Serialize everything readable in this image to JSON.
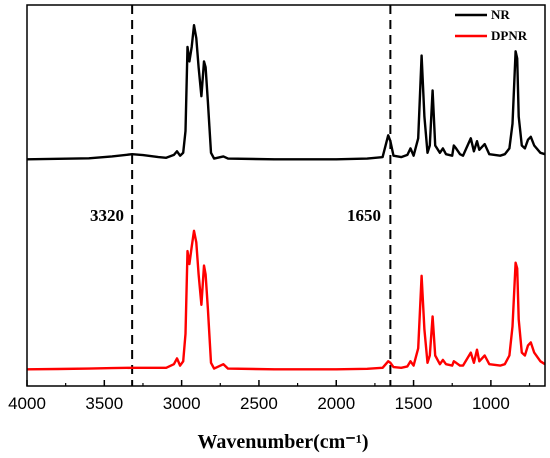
{
  "chart_data": {
    "type": "line",
    "title": "",
    "xlabel": "Wavenumber(cm⁻¹)",
    "ylabel": "",
    "xlim": [
      4000,
      650
    ],
    "x_reversed": true,
    "xticks": [
      4000,
      3500,
      3000,
      2500,
      2000,
      1500,
      1000
    ],
    "y_axis_shown": false,
    "grid": false,
    "legend_position": "top-right",
    "annotations": [
      {
        "label": "3320",
        "x": 3320,
        "style": "dashed vertical line"
      },
      {
        "label": "1650",
        "x": 1650,
        "style": "dashed vertical line"
      }
    ],
    "series": [
      {
        "name": "NR",
        "color": "#000000",
        "baseline": 0,
        "points": [
          [
            4000,
            0.5
          ],
          [
            3800,
            0.8
          ],
          [
            3600,
            1.2
          ],
          [
            3450,
            2.5
          ],
          [
            3320,
            4.0
          ],
          [
            3250,
            3.4
          ],
          [
            3150,
            2.0
          ],
          [
            3100,
            1.5
          ],
          [
            3050,
            3.5
          ],
          [
            3030,
            6.0
          ],
          [
            3010,
            3.0
          ],
          [
            2990,
            5.0
          ],
          [
            2975,
            20.0
          ],
          [
            2962,
            78.0
          ],
          [
            2950,
            68.0
          ],
          [
            2935,
            78.0
          ],
          [
            2920,
            93.0
          ],
          [
            2905,
            84.0
          ],
          [
            2890,
            64.0
          ],
          [
            2872,
            44.0
          ],
          [
            2855,
            68.0
          ],
          [
            2845,
            64.0
          ],
          [
            2830,
            40.0
          ],
          [
            2810,
            5.0
          ],
          [
            2790,
            1.0
          ],
          [
            2730,
            2.5
          ],
          [
            2700,
            1.0
          ],
          [
            2400,
            0.5
          ],
          [
            2000,
            0.5
          ],
          [
            1800,
            1.0
          ],
          [
            1700,
            2.0
          ],
          [
            1664,
            17.0
          ],
          [
            1650,
            13.0
          ],
          [
            1630,
            3.0
          ],
          [
            1580,
            2.0
          ],
          [
            1540,
            3.5
          ],
          [
            1520,
            8.0
          ],
          [
            1500,
            3.0
          ],
          [
            1470,
            15.0
          ],
          [
            1448,
            72.0
          ],
          [
            1430,
            30.0
          ],
          [
            1410,
            5.0
          ],
          [
            1395,
            10.0
          ],
          [
            1377,
            48.0
          ],
          [
            1360,
            10.0
          ],
          [
            1330,
            5.0
          ],
          [
            1310,
            8.0
          ],
          [
            1290,
            4.0
          ],
          [
            1250,
            3.0
          ],
          [
            1240,
            10.0
          ],
          [
            1225,
            8.0
          ],
          [
            1200,
            4.0
          ],
          [
            1180,
            3.0
          ],
          [
            1130,
            15.0
          ],
          [
            1110,
            6.0
          ],
          [
            1090,
            13.0
          ],
          [
            1075,
            7.0
          ],
          [
            1040,
            11.0
          ],
          [
            1010,
            4.0
          ],
          [
            940,
            3.0
          ],
          [
            910,
            4.0
          ],
          [
            880,
            8.0
          ],
          [
            860,
            25.0
          ],
          [
            840,
            75.0
          ],
          [
            830,
            70.0
          ],
          [
            820,
            30.0
          ],
          [
            800,
            10.0
          ],
          [
            780,
            8.0
          ],
          [
            760,
            14.0
          ],
          [
            742,
            16.0
          ],
          [
            720,
            10.0
          ],
          [
            680,
            5.0
          ],
          [
            650,
            4.0
          ]
        ]
      },
      {
        "name": "DPNR",
        "color": "#ff0000",
        "baseline": 0,
        "points": [
          [
            4000,
            0.5
          ],
          [
            3800,
            0.7
          ],
          [
            3600,
            1.0
          ],
          [
            3450,
            1.3
          ],
          [
            3320,
            1.5
          ],
          [
            3250,
            1.5
          ],
          [
            3150,
            1.5
          ],
          [
            3100,
            1.5
          ],
          [
            3050,
            4.0
          ],
          [
            3030,
            8.0
          ],
          [
            3010,
            3.0
          ],
          [
            2990,
            6.0
          ],
          [
            2975,
            25.0
          ],
          [
            2962,
            82.0
          ],
          [
            2950,
            73.0
          ],
          [
            2935,
            85.0
          ],
          [
            2920,
            96.0
          ],
          [
            2905,
            88.0
          ],
          [
            2890,
            66.0
          ],
          [
            2872,
            45.0
          ],
          [
            2855,
            72.0
          ],
          [
            2845,
            66.0
          ],
          [
            2830,
            42.0
          ],
          [
            2810,
            5.0
          ],
          [
            2790,
            1.0
          ],
          [
            2730,
            4.0
          ],
          [
            2700,
            1.0
          ],
          [
            2400,
            0.5
          ],
          [
            2000,
            0.5
          ],
          [
            1800,
            0.8
          ],
          [
            1700,
            1.5
          ],
          [
            1664,
            6.0
          ],
          [
            1650,
            5.0
          ],
          [
            1630,
            2.0
          ],
          [
            1580,
            1.5
          ],
          [
            1540,
            2.5
          ],
          [
            1520,
            6.0
          ],
          [
            1500,
            3.0
          ],
          [
            1470,
            15.0
          ],
          [
            1448,
            65.0
          ],
          [
            1430,
            28.0
          ],
          [
            1410,
            5.0
          ],
          [
            1395,
            10.0
          ],
          [
            1377,
            37.0
          ],
          [
            1360,
            10.0
          ],
          [
            1330,
            4.0
          ],
          [
            1310,
            7.0
          ],
          [
            1290,
            4.0
          ],
          [
            1250,
            3.0
          ],
          [
            1240,
            6.0
          ],
          [
            1225,
            5.0
          ],
          [
            1200,
            3.0
          ],
          [
            1180,
            3.0
          ],
          [
            1130,
            12.0
          ],
          [
            1110,
            5.0
          ],
          [
            1090,
            14.0
          ],
          [
            1075,
            6.0
          ],
          [
            1040,
            10.0
          ],
          [
            1010,
            4.0
          ],
          [
            940,
            3.0
          ],
          [
            910,
            4.0
          ],
          [
            880,
            10.0
          ],
          [
            860,
            30.0
          ],
          [
            840,
            74.0
          ],
          [
            830,
            70.0
          ],
          [
            820,
            35.0
          ],
          [
            800,
            12.0
          ],
          [
            780,
            10.0
          ],
          [
            760,
            17.0
          ],
          [
            742,
            19.0
          ],
          [
            720,
            12.0
          ],
          [
            680,
            6.0
          ],
          [
            650,
            4.0
          ]
        ]
      }
    ]
  }
}
